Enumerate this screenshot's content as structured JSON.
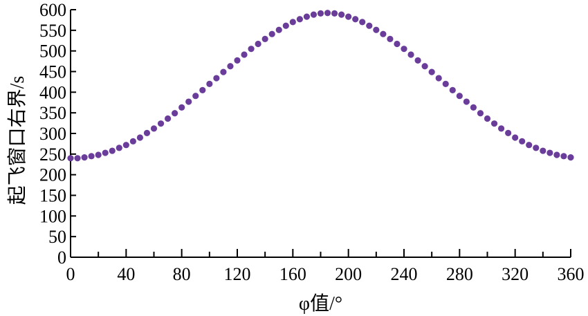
{
  "chart_data": {
    "type": "scatter",
    "xlabel": "φ值/°",
    "ylabel": "起飞窗口右界/s",
    "xlim": [
      0,
      360
    ],
    "ylim": [
      0,
      600
    ],
    "x_ticks": [
      "0",
      "40",
      "80",
      "120",
      "160",
      "200",
      "240",
      "280",
      "320",
      "360"
    ],
    "y_ticks": [
      "0",
      "50",
      "100",
      "150",
      "200",
      "250",
      "300",
      "350",
      "400",
      "450",
      "500",
      "550",
      "600"
    ],
    "grid": false,
    "marker_color": "#6a3d9a",
    "series": [
      {
        "x": [
          0,
          5,
          10,
          15,
          20,
          25,
          30,
          35,
          40,
          45,
          50,
          55,
          60,
          65,
          70,
          75,
          80,
          85,
          90,
          95,
          100,
          105,
          110,
          115,
          120,
          125,
          130,
          135,
          140,
          145,
          150,
          155,
          160,
          165,
          170,
          175,
          180,
          185,
          190,
          195,
          200,
          205,
          210,
          215,
          220,
          225,
          230,
          235,
          240,
          245,
          250,
          255,
          260,
          265,
          270,
          275,
          280,
          285,
          290,
          295,
          300,
          305,
          310,
          315,
          320,
          325,
          330,
          335,
          340,
          345,
          350,
          355,
          360
        ],
        "y": [
          240,
          240,
          242,
          245,
          248,
          253,
          258,
          265,
          272,
          281,
          290,
          301,
          312,
          324,
          336,
          349,
          363,
          377,
          391,
          405,
          420,
          434,
          449,
          463,
          477,
          491,
          505,
          517,
          529,
          541,
          551,
          561,
          570,
          577,
          583,
          588,
          591,
          592,
          591,
          588,
          583,
          577,
          570,
          561,
          551,
          541,
          529,
          517,
          505,
          491,
          477,
          463,
          449,
          434,
          420,
          405,
          391,
          377,
          363,
          349,
          336,
          324,
          312,
          301,
          290,
          281,
          272,
          265,
          258,
          253,
          248,
          245,
          242
        ]
      }
    ]
  }
}
